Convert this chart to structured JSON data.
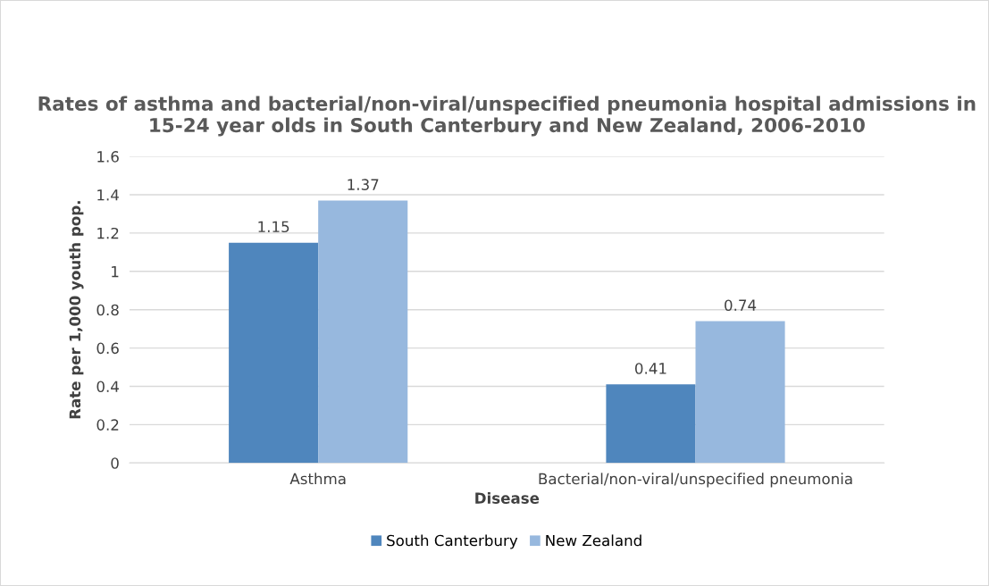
{
  "chart_data": {
    "type": "bar",
    "title": "Rates of asthma and bacterial/non-viral/unspecified pneumonia hospital admissions in 15-24 year olds in South Canterbury and New Zealand, 2006-2010",
    "xlabel": "Disease",
    "ylabel": "Rate per 1,000 youth pop.",
    "categories": [
      "Asthma",
      "Bacterial/non-viral/unspecified pneumonia"
    ],
    "series": [
      {
        "name": "South Canterbury",
        "color": "#4f86bd",
        "values": [
          1.15,
          0.41
        ]
      },
      {
        "name": "New Zealand",
        "color": "#97b8de",
        "values": [
          1.37,
          0.74
        ]
      }
    ],
    "ylim": [
      0,
      1.6
    ],
    "yticks": [
      0,
      0.2,
      0.4,
      0.6,
      0.8,
      1,
      1.2,
      1.4,
      1.6
    ],
    "grid": "y",
    "legend": "bottom",
    "data_labels": true
  }
}
